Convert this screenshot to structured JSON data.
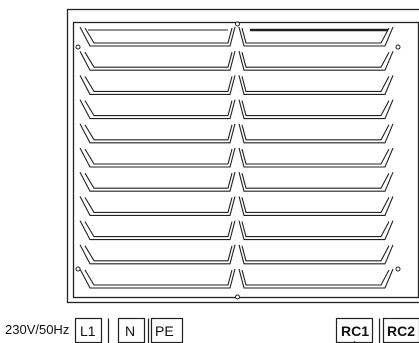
{
  "supply": {
    "label": "230V/50Hz"
  },
  "terminals": [
    "L1",
    "N",
    "PE"
  ],
  "remote_terminals": [
    "RC1",
    "RC2"
  ],
  "louver_panel": {
    "columns": 2,
    "rows": 11
  }
}
